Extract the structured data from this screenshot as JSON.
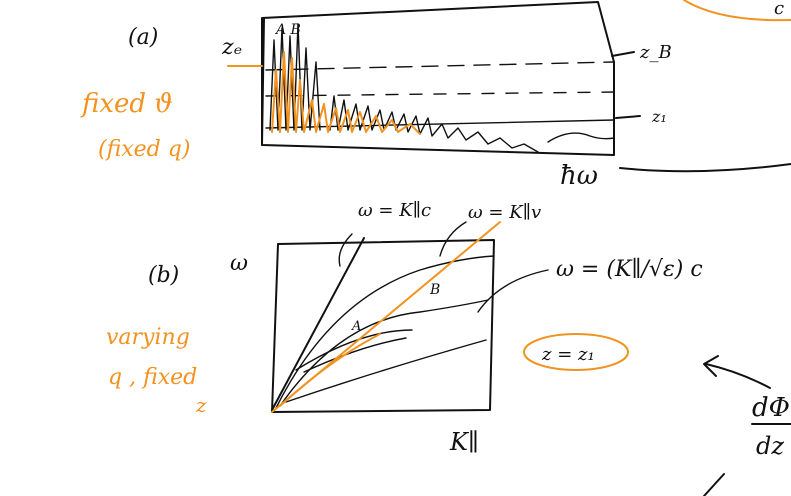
{
  "colors": {
    "ink": "#111111",
    "highlight": "#f2921f"
  },
  "top_sketch": {
    "panel_label": "(a)",
    "left_label": "zₑ",
    "peak_labels": "A B",
    "right_label_top": "z_B",
    "right_label_mid": "z₁",
    "x_axis_label": "ħω",
    "orange_note_line1": "fixed ϑ",
    "orange_note_line2": "(fixed q)"
  },
  "bottom_sketch": {
    "panel_label": "(b)",
    "y_axis_label": "ω",
    "x_axis_label": "K∥",
    "line_label_left": "ω = K∥c",
    "line_label_orange": "ω = K∥v",
    "curve_label": "ω = (K∥/√ε) c",
    "point_a": "A",
    "point_b": "B",
    "orange_note_line1": "varying",
    "orange_note_line2": "q , fixed",
    "orange_note_line3": "z",
    "circled_note": "z = z₁"
  },
  "edge_fragments": {
    "fraction_top": "dΦ",
    "fraction_bottom": "dz",
    "corner_text": "c"
  }
}
